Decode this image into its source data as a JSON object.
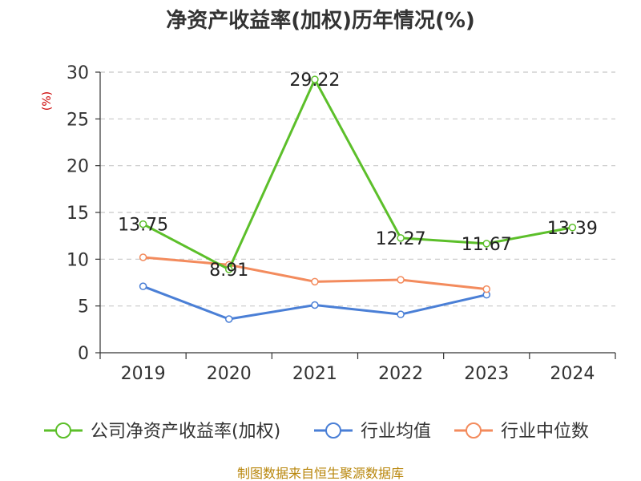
{
  "chart_data": {
    "type": "line",
    "title": "净资产收益率(加权)历年情况(%)",
    "ylabel": "(%)",
    "xlabel": "",
    "categories": [
      "2019",
      "2020",
      "2021",
      "2022",
      "2023",
      "2024"
    ],
    "ylim": [
      0,
      30
    ],
    "yticks": [
      0,
      5,
      10,
      15,
      20,
      25,
      30
    ],
    "grid": true,
    "legend_position": "bottom",
    "series": [
      {
        "name": "公司净资产收益率(加权)",
        "color": "#5cbf2a",
        "values": [
          13.75,
          8.91,
          29.22,
          12.27,
          11.67,
          13.39
        ],
        "labels": [
          "13.75",
          "8.91",
          "29.22",
          "12.27",
          "11.67",
          "13.39"
        ]
      },
      {
        "name": "行业均值",
        "color": "#4a7fd6",
        "values": [
          7.1,
          3.6,
          5.1,
          4.1,
          6.2,
          null
        ]
      },
      {
        "name": "行业中位数",
        "color": "#f38b5d",
        "values": [
          10.2,
          9.4,
          7.6,
          7.8,
          6.8,
          null
        ]
      }
    ]
  },
  "source_note": "制图数据来自恒生聚源数据库"
}
